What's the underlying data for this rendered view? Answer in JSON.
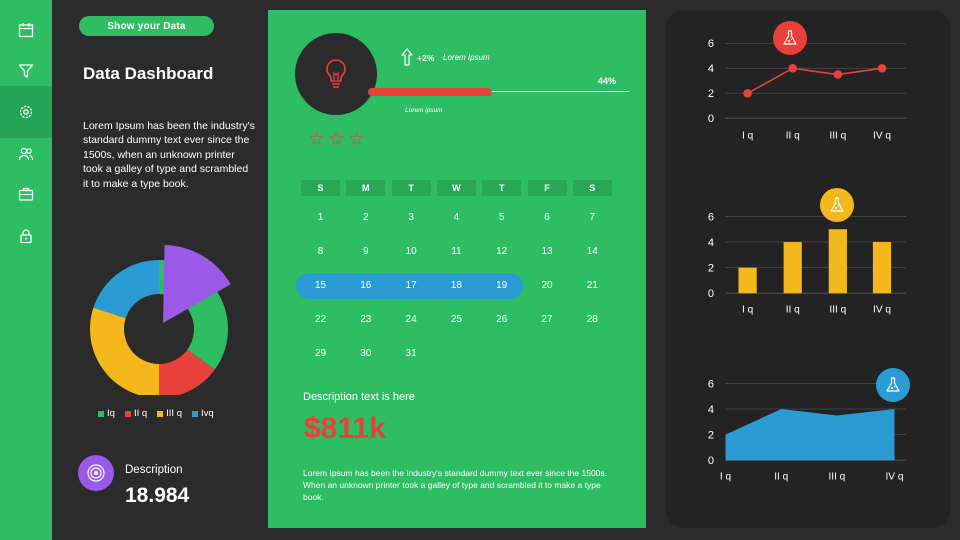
{
  "sidebar": {
    "items": [
      {
        "icon": "calendar-icon"
      },
      {
        "icon": "filter-icon"
      },
      {
        "icon": "settings-icon",
        "active": true
      },
      {
        "icon": "users-icon"
      },
      {
        "icon": "briefcase-icon"
      },
      {
        "icon": "lock-icon"
      }
    ]
  },
  "header": {
    "button_label": "Show your Data",
    "title": "Data Dashboard",
    "intro": "Lorem Ipsum has been the industry's standard dummy text ever since the 1500s, when an unknown printer took a galley of type and scrambled it to make a type book."
  },
  "left": {
    "legend": [
      "Iq",
      "II q",
      "III q",
      "Ivq"
    ],
    "description_label": "Description",
    "description_value": "18.984"
  },
  "card": {
    "increase": "+2%",
    "increase_caption": "Lorem Ipsum",
    "progress_percent_label": "44%",
    "progress_value": 0.44,
    "progress_caption": "Lorem ipsum",
    "stars_total": 3,
    "calendar": {
      "days": [
        "S",
        "M",
        "T",
        "W",
        "T",
        "F",
        "S"
      ],
      "weeks": [
        [
          "1",
          "2",
          "3",
          "4",
          "5",
          "6",
          "7"
        ],
        [
          "8",
          "9",
          "10",
          "11",
          "12",
          "13",
          "14"
        ],
        [
          "15",
          "16",
          "17",
          "18",
          "19",
          "20",
          "21"
        ],
        [
          "22",
          "23",
          "24",
          "25",
          "26",
          "27",
          "28"
        ],
        [
          "29",
          "30",
          "31",
          "",
          "",
          "",
          ""
        ]
      ],
      "highlighted_week": 2
    },
    "description_label": "Description text is here",
    "amount": "$811k",
    "text": "Lorem Ipsum has been the industry's standard dummy text ever since the 1500s. When an unknown printer took a galley of type and scrambled it to make a type book."
  },
  "colors": {
    "green": "#2ebd63",
    "red": "#e8403a",
    "yellow": "#f4b81c",
    "blue": "#2b9bd3",
    "purple": "#9b59e8",
    "dark": "#2b2b2b"
  },
  "chart_data": [
    {
      "type": "pie",
      "donut": true,
      "categories": [
        "Iq",
        "II q",
        "III q",
        "Ivq"
      ],
      "values": [
        35,
        15,
        30,
        20
      ],
      "exploded": {
        "color": "#9b59e8"
      }
    },
    {
      "type": "line",
      "categories": [
        "I q",
        "II q",
        "III q",
        "IV q"
      ],
      "values": [
        2,
        4,
        3.5,
        4
      ],
      "ylim": [
        0,
        6
      ],
      "yticks": [
        0,
        2,
        4,
        6
      ],
      "color": "#e8403a"
    },
    {
      "type": "bar",
      "categories": [
        "I q",
        "II q",
        "III q",
        "IV q"
      ],
      "values": [
        2,
        4,
        5,
        4
      ],
      "ylim": [
        0,
        6
      ],
      "yticks": [
        0,
        2,
        4,
        6
      ],
      "color": "#f4b81c"
    },
    {
      "type": "area",
      "categories": [
        "I q",
        "II q",
        "III q",
        "IV q"
      ],
      "values": [
        2,
        4,
        3.5,
        4
      ],
      "ylim": [
        0,
        6
      ],
      "yticks": [
        0,
        2,
        4,
        6
      ],
      "color": "#2b9bd3"
    }
  ]
}
